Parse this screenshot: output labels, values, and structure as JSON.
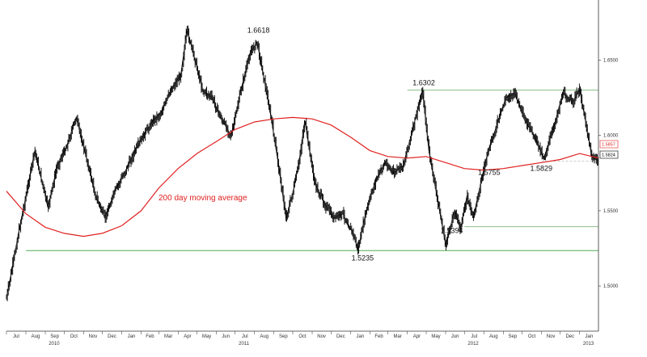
{
  "chart_data": {
    "type": "line",
    "style": "daily price bars with moving-average overlay",
    "x_axis": {
      "month_labels": [
        "Jul",
        "Aug",
        "Sep",
        "Oct",
        "Nov",
        "Dec",
        "Jan",
        "Feb",
        "Mar",
        "Apr",
        "May",
        "Jun",
        "Jul",
        "Aug",
        "Sep",
        "Oct",
        "Nov",
        "Dec",
        "Jan",
        "Feb",
        "Mar",
        "Apr",
        "May",
        "Jun",
        "Jul",
        "Aug",
        "Sep",
        "Oct",
        "Nov",
        "Dec",
        "Jan"
      ],
      "year_labels": [
        "2010",
        "2011",
        "2012",
        "2013"
      ],
      "range": [
        "2010-07-01",
        "2013-01-31"
      ]
    },
    "y_axis": {
      "ticks": [
        "1.5000",
        "1.5500",
        "1.6000",
        "1.6500"
      ],
      "range": [
        1.47,
        1.69
      ],
      "side": "right"
    },
    "grid": false,
    "series": [
      {
        "name": "",
        "color": "#000000",
        "x": [
          "2010-07-01",
          "2010-07-10",
          "2010-07-20",
          "2010-08-01",
          "2010-08-15",
          "2010-08-25",
          "2010-09-05",
          "2010-09-20",
          "2010-10-05",
          "2010-10-20",
          "2010-11-05",
          "2010-11-20",
          "2010-12-05",
          "2010-12-20",
          "2011-01-05",
          "2011-01-20",
          "2011-02-05",
          "2011-02-20",
          "2011-03-05",
          "2011-03-20",
          "2011-04-05",
          "2011-04-15",
          "2011-04-28",
          "2011-05-10",
          "2011-05-25",
          "2011-06-10",
          "2011-06-25",
          "2011-07-10",
          "2011-07-25",
          "2011-08-05",
          "2011-08-15",
          "2011-08-28",
          "2011-09-10",
          "2011-09-20",
          "2011-10-01",
          "2011-10-10",
          "2011-10-20",
          "2011-11-05",
          "2011-11-20",
          "2011-12-05",
          "2011-12-20",
          "2012-01-05",
          "2012-01-13",
          "2012-01-25",
          "2012-02-10",
          "2012-02-25",
          "2012-03-10",
          "2012-03-25",
          "2012-04-10",
          "2012-04-25",
          "2012-05-05",
          "2012-05-20",
          "2012-06-01",
          "2012-06-15",
          "2012-06-25",
          "2012-07-05",
          "2012-07-15",
          "2012-07-25",
          "2012-08-05",
          "2012-08-20",
          "2012-09-05",
          "2012-09-20",
          "2012-10-05",
          "2012-10-20",
          "2012-11-05",
          "2012-11-20",
          "2012-12-05",
          "2012-12-20",
          "2013-01-01",
          "2013-01-10",
          "2013-01-20",
          "2013-01-31"
        ],
        "values": [
          1.492,
          1.512,
          1.535,
          1.56,
          1.59,
          1.572,
          1.552,
          1.58,
          1.593,
          1.612,
          1.586,
          1.56,
          1.545,
          1.562,
          1.575,
          1.588,
          1.6,
          1.61,
          1.615,
          1.63,
          1.64,
          1.67,
          1.65,
          1.63,
          1.625,
          1.61,
          1.6,
          1.63,
          1.655,
          1.662,
          1.64,
          1.61,
          1.575,
          1.545,
          1.562,
          1.58,
          1.61,
          1.568,
          1.555,
          1.545,
          1.548,
          1.535,
          1.524,
          1.548,
          1.57,
          1.582,
          1.575,
          1.58,
          1.605,
          1.63,
          1.59,
          1.555,
          1.527,
          1.55,
          1.538,
          1.56,
          1.545,
          1.565,
          1.585,
          1.605,
          1.625,
          1.628,
          1.61,
          1.6,
          1.585,
          1.605,
          1.628,
          1.622,
          1.63,
          1.61,
          1.586,
          1.583
        ]
      },
      {
        "name": "200 day moving average",
        "color": "#e02020",
        "x": [
          "2010-07-01",
          "2010-08-01",
          "2010-09-01",
          "2010-10-01",
          "2010-11-01",
          "2010-12-01",
          "2011-01-01",
          "2011-02-01",
          "2011-03-01",
          "2011-04-01",
          "2011-05-01",
          "2011-06-01",
          "2011-07-01",
          "2011-08-01",
          "2011-09-01",
          "2011-10-01",
          "2011-11-01",
          "2011-12-01",
          "2012-01-01",
          "2012-02-01",
          "2012-03-01",
          "2012-04-01",
          "2012-05-01",
          "2012-06-01",
          "2012-07-01",
          "2012-08-01",
          "2012-09-01",
          "2012-10-01",
          "2012-11-01",
          "2012-12-01",
          "2013-01-01",
          "2013-01-31"
        ],
        "values": [
          1.563,
          1.548,
          1.539,
          1.535,
          1.533,
          1.535,
          1.54,
          1.55,
          1.565,
          1.578,
          1.588,
          1.596,
          1.604,
          1.609,
          1.611,
          1.612,
          1.611,
          1.607,
          1.599,
          1.59,
          1.586,
          1.585,
          1.586,
          1.582,
          1.578,
          1.577,
          1.578,
          1.58,
          1.582,
          1.584,
          1.588,
          1.585
        ]
      }
    ],
    "horizontal_lines": [
      {
        "value": 1.6302,
        "from": "2012-04-01",
        "to": "2013-01-31",
        "color": "#8cc08c"
      },
      {
        "value": 1.5394,
        "from": "2012-07-01",
        "to": "2013-01-31",
        "color": "#8cc08c"
      },
      {
        "value": 1.5235,
        "from": "2010-08-01",
        "to": "2013-01-31",
        "color": "#55aa55"
      },
      {
        "value": 1.5829,
        "from": "2012-11-01",
        "to": "2013-01-31",
        "color": "#bbbbbb",
        "dashed": true
      }
    ],
    "annotations": [
      {
        "text": "1.6618",
        "x": "2011-08-05",
        "y": 1.6618
      },
      {
        "text": "1.6302",
        "x": "2012-04-25",
        "y": 1.6302
      },
      {
        "text": "1.5235",
        "x": "2012-01-13",
        "y": 1.5235
      },
      {
        "text": "1.5394",
        "x": "2012-06-01",
        "y": 1.5394
      },
      {
        "text": "1.5755",
        "x": "2012-07-15",
        "y": 1.5755
      },
      {
        "text": "1.5829",
        "x": "2012-11-01",
        "y": 1.5829
      }
    ],
    "series_label": "200 day moving average",
    "axis_badges": [
      {
        "text": "1.5857",
        "color": "#e02020"
      },
      {
        "text": "1.5824",
        "color": "#000000"
      }
    ]
  }
}
